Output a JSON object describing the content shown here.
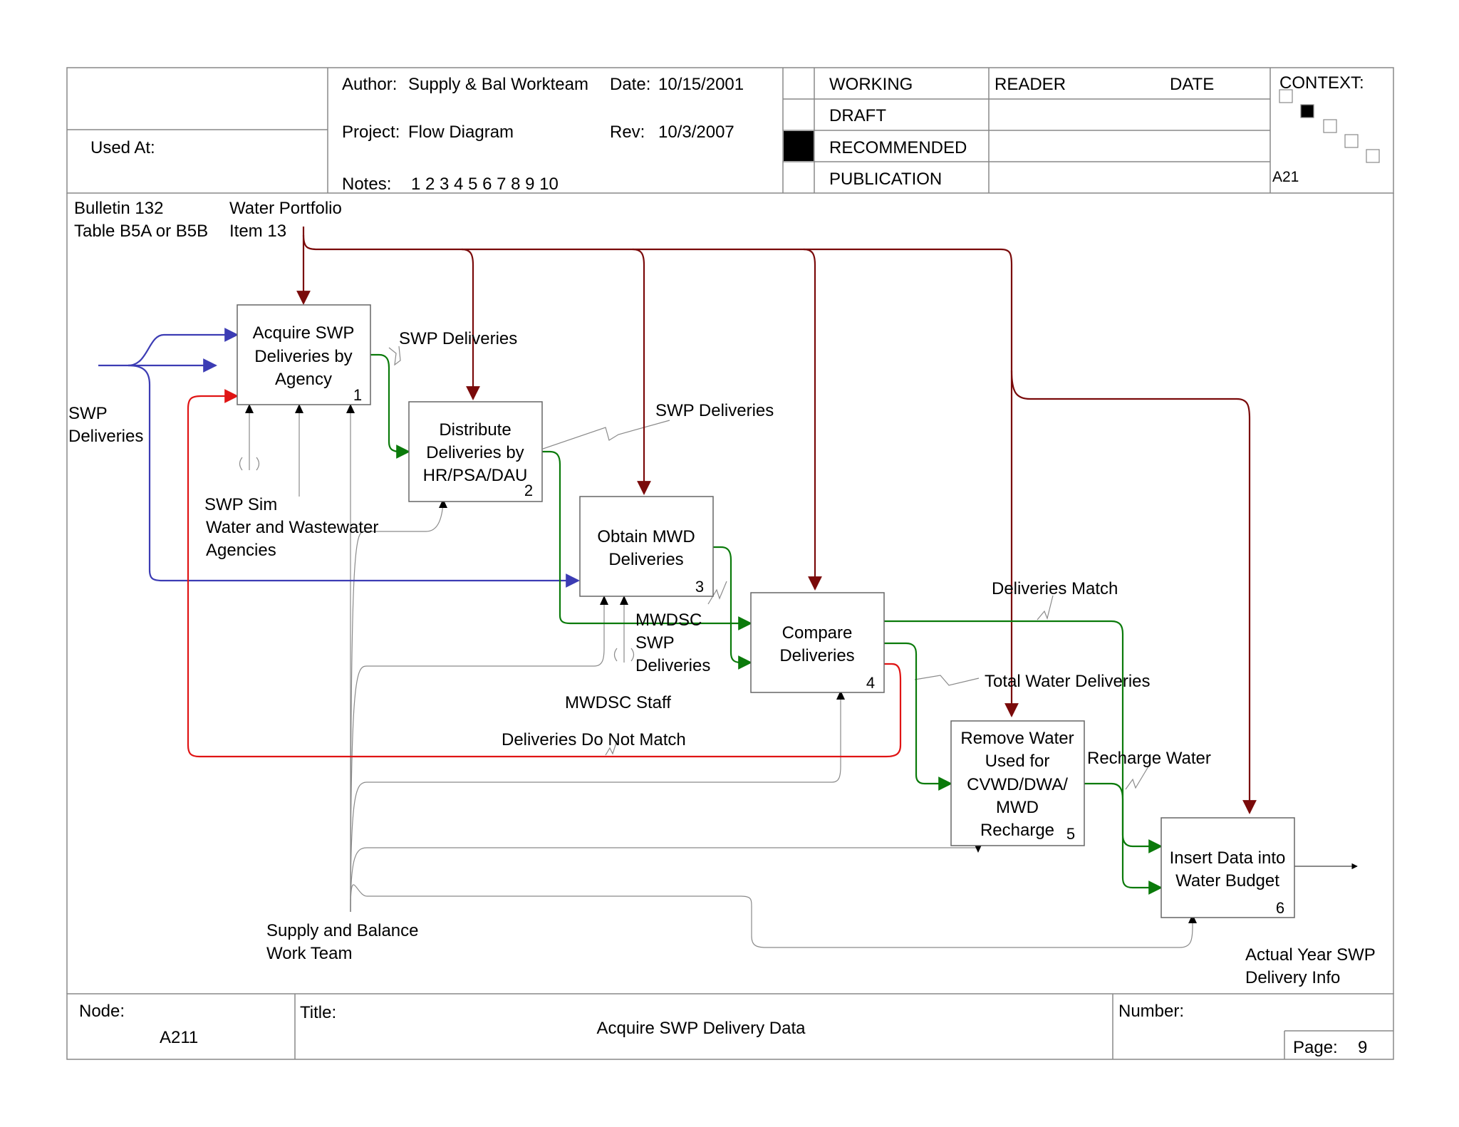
{
  "header": {
    "used_at_label": "Used At:",
    "author_label": "Author:",
    "author_value": "Supply & Bal Workteam",
    "date_label": "Date:",
    "date_value": "10/15/2001",
    "project_label": "Project:",
    "project_value": "Flow Diagram",
    "rev_label": "Rev:",
    "rev_value": "10/3/2007",
    "notes_label": "Notes:",
    "notes_value": "1 2 3 4 5 6 7 8 9 10",
    "status": [
      {
        "label": "WORKING",
        "checked": false
      },
      {
        "label": "DRAFT",
        "checked": false
      },
      {
        "label": "RECOMMENDED",
        "checked": true
      },
      {
        "label": "PUBLICATION",
        "checked": false
      }
    ],
    "reader_label": "READER",
    "reader_date_label": "DATE",
    "context_label": "CONTEXT:",
    "context_node": "A21"
  },
  "diagram": {
    "boxes": [
      {
        "lines": [
          "Acquire SWP",
          "Deliveries by",
          "Agency"
        ],
        "number": "1"
      },
      {
        "lines": [
          "Distribute",
          "Deliveries by",
          "HR/PSA/DAU"
        ],
        "number": "2"
      },
      {
        "lines": [
          "Obtain MWD",
          "Deliveries"
        ],
        "number": "3"
      },
      {
        "lines": [
          "Compare",
          "Deliveries"
        ],
        "number": "4"
      },
      {
        "lines": [
          "Remove Water",
          "Used for",
          "CVWD/DWA/",
          "MWD",
          "Recharge"
        ],
        "number": "5"
      },
      {
        "lines": [
          "Insert Data into",
          "Water Budget"
        ],
        "number": "6"
      }
    ],
    "labels": {
      "bulletin_1": "Bulletin 132",
      "bulletin_2": "Table B5A or B5B",
      "portfolio_1": "Water Portfolio",
      "portfolio_2": "Item 13",
      "swp_input_1": "SWP",
      "swp_input_2": "Deliveries",
      "swp_deliveries_a": "SWP Deliveries",
      "swp_deliveries_b": "SWP Deliveries",
      "swp_sim": "SWP Sim",
      "agencies_1": "Water and Wastewater",
      "agencies_2": "Agencies",
      "mwdsc_1": "MWDSC",
      "mwdsc_2": "SWP",
      "mwdsc_3": "Deliveries",
      "mwdsc_staff": "MWDSC Staff",
      "no_match": "Deliveries Do Not Match",
      "match": "Deliveries Match",
      "total": "Total Water Deliveries",
      "recharge": "Recharge Water",
      "team_1": "Supply and Balance",
      "team_2": "Work Team",
      "output_1": "Actual Year SWP",
      "output_2": "Delivery Info"
    },
    "colors": {
      "control": "#7a0a0a",
      "input": "#3c3cb4",
      "flow": "#0a7a0a",
      "feedback": "#e01414",
      "mechanism": "#8a8a8a"
    }
  },
  "footer": {
    "node_label": "Node:",
    "node_value": "A211",
    "title_label": "Title:",
    "title_value": "Acquire SWP Delivery Data",
    "number_label": "Number:",
    "page_label": "Page:",
    "page_value": "9"
  }
}
